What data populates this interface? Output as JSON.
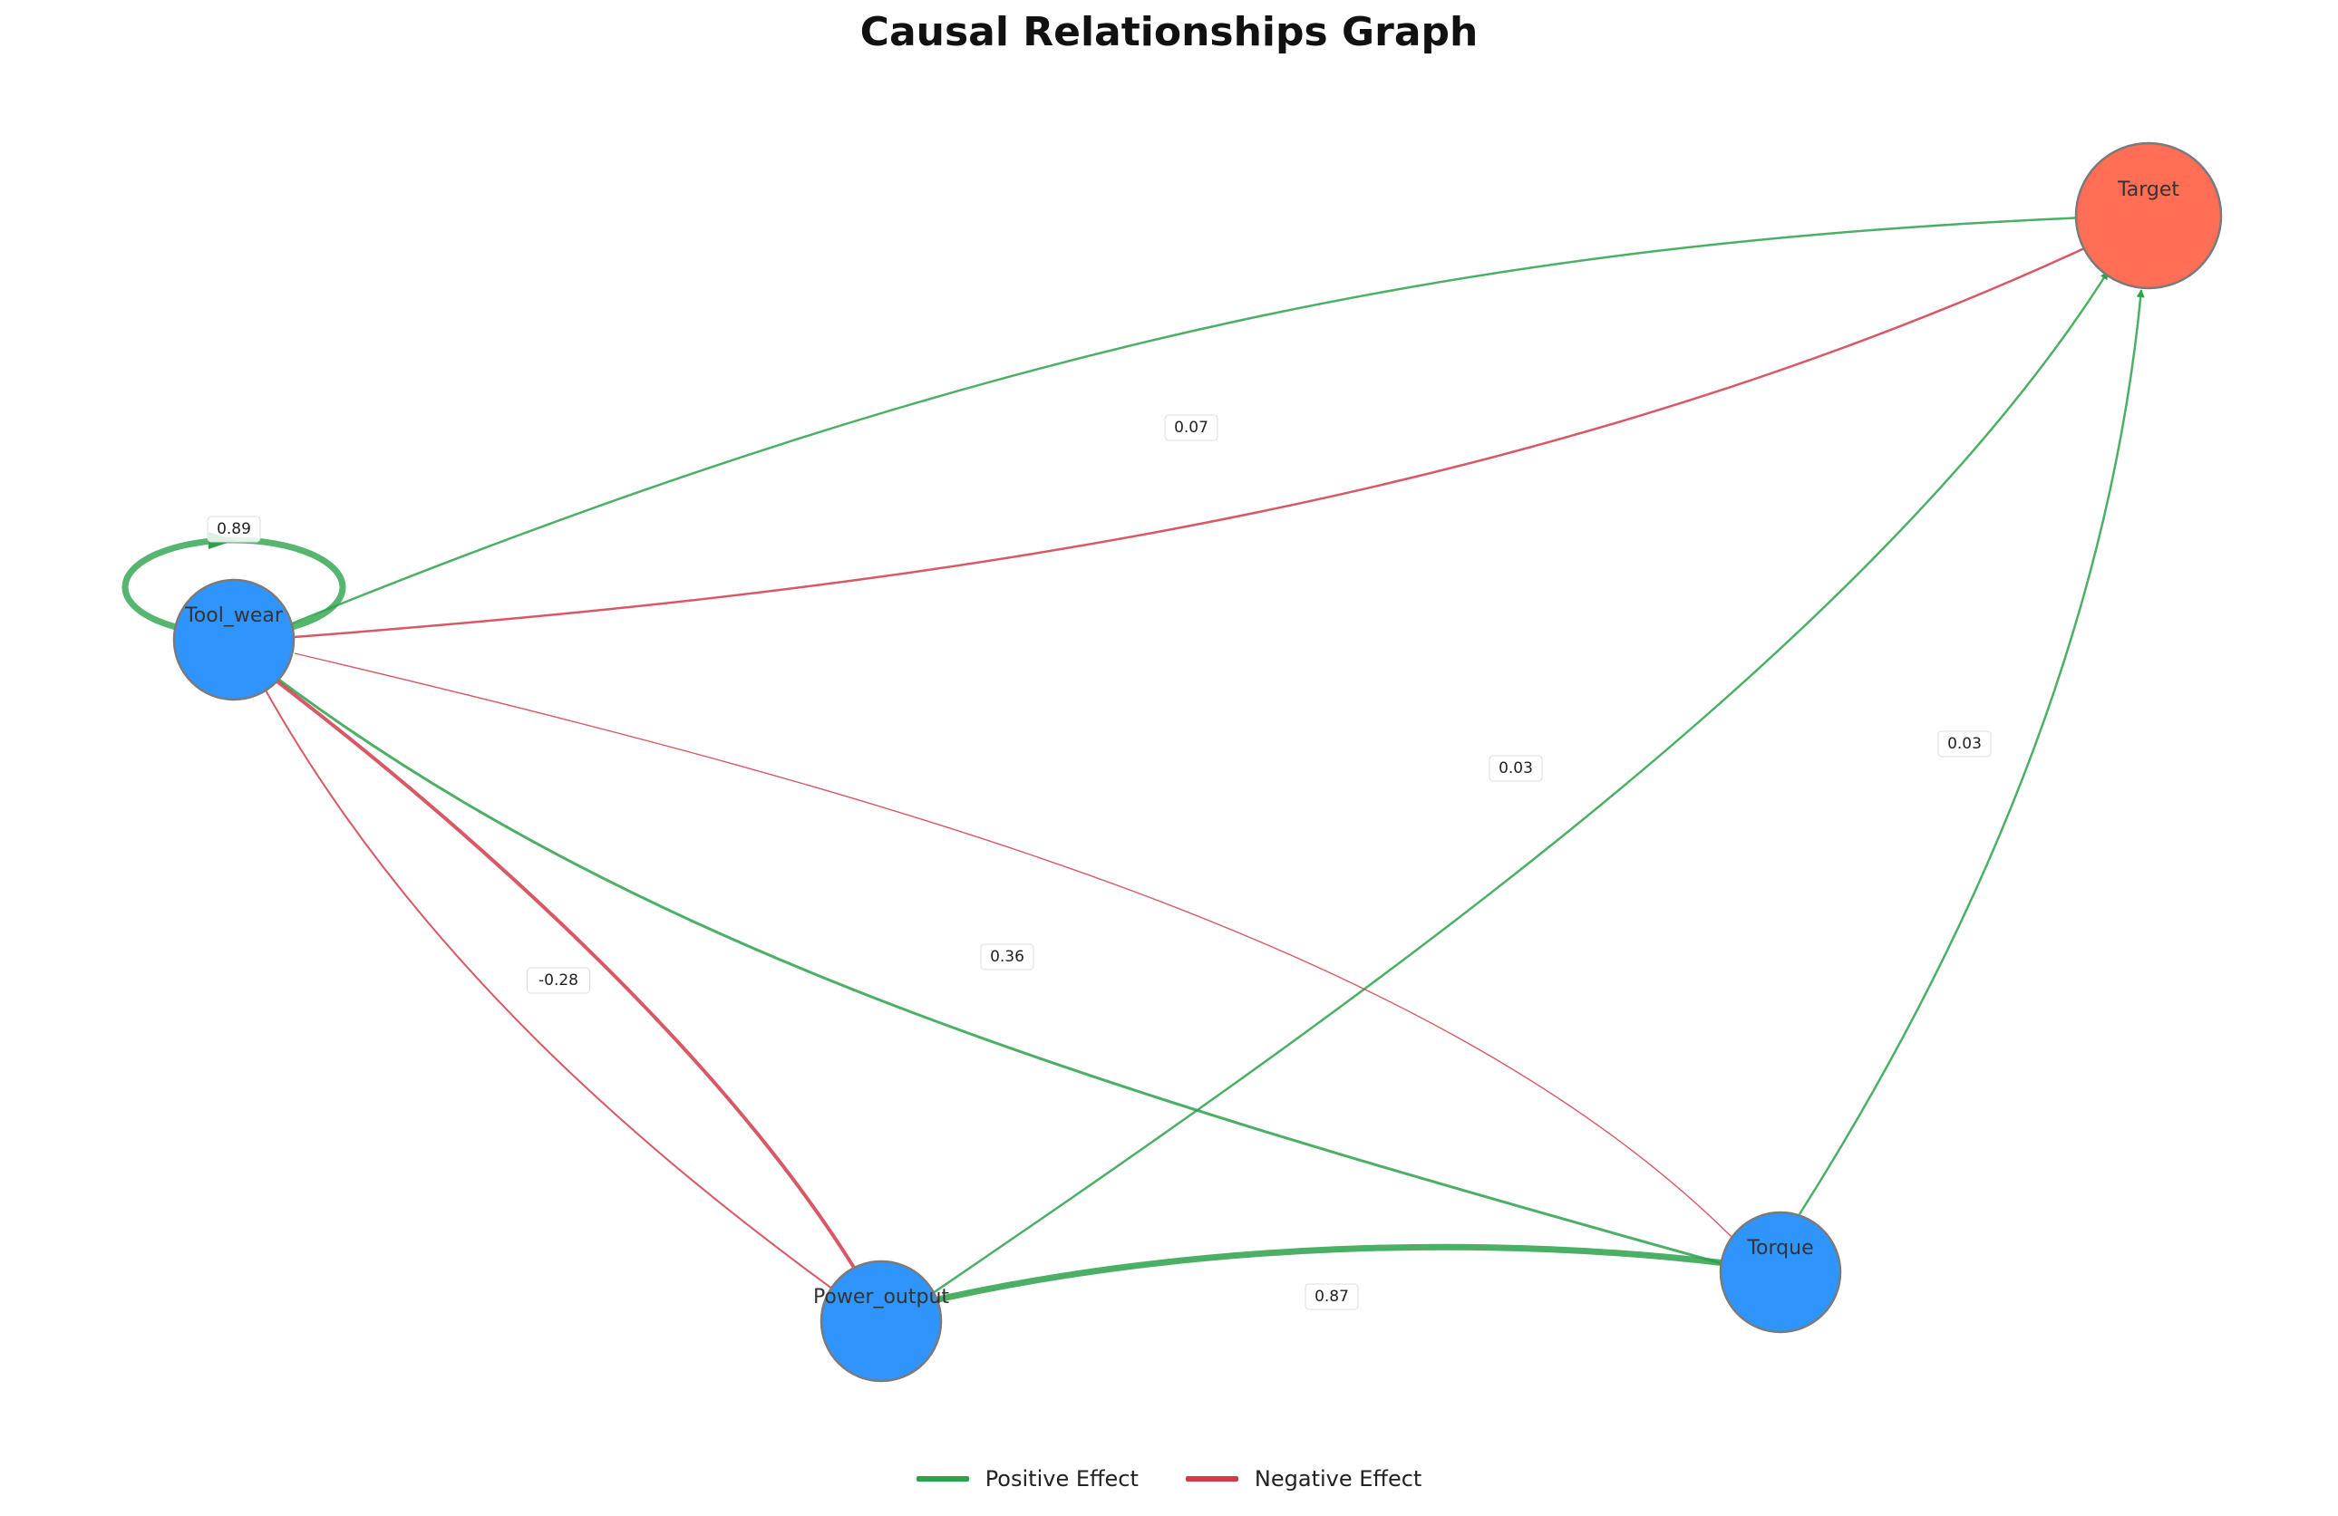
{
  "title": "Causal Relationships Graph",
  "colors": {
    "positive": "#2ca24a",
    "negative": "#d13b4a",
    "feature_node": "#2f95fd",
    "target_node": "#ff6e55"
  },
  "nodes": [
    {
      "id": "tool_wear",
      "label": "Tool_wear",
      "kind": "feature"
    },
    {
      "id": "power_output",
      "label": "Power_output",
      "kind": "feature"
    },
    {
      "id": "torque",
      "label": "Torque",
      "kind": "feature"
    },
    {
      "id": "target",
      "label": "Target",
      "kind": "target"
    }
  ],
  "edges": [
    {
      "id": "tw-target",
      "source": "tool_wear",
      "target": "target",
      "sign": "positive",
      "weight": 0.07,
      "label": "0.07"
    },
    {
      "id": "target-tw",
      "source": "target",
      "target": "tool_wear",
      "sign": "negative",
      "weight": 0.07
    },
    {
      "id": "tw-self",
      "source": "tool_wear",
      "target": "tool_wear",
      "sign": "positive",
      "weight": 0.89,
      "label": "0.89"
    },
    {
      "id": "po-target",
      "source": "power_output",
      "target": "target",
      "sign": "positive",
      "weight": 0.03,
      "label": "0.03"
    },
    {
      "id": "torque-target",
      "source": "torque",
      "target": "target",
      "sign": "positive",
      "weight": 0.03,
      "label": "0.03"
    },
    {
      "id": "po-torque",
      "source": "power_output",
      "target": "torque",
      "sign": "positive",
      "weight": 0.87,
      "label": "0.87"
    },
    {
      "id": "torque-tw",
      "source": "torque",
      "target": "tool_wear",
      "sign": "positive",
      "weight": 0.36,
      "label": "0.36"
    },
    {
      "id": "tw-torque",
      "source": "tool_wear",
      "target": "torque",
      "sign": "negative",
      "weight": 0.36
    },
    {
      "id": "po-tw",
      "source": "power_output",
      "target": "tool_wear",
      "sign": "negative",
      "weight": 0.28,
      "label": "-0.28"
    },
    {
      "id": "tw-po",
      "source": "tool_wear",
      "target": "power_output",
      "sign": "negative",
      "weight": 0.28
    }
  ],
  "legend": [
    {
      "label": "Positive Effect",
      "sign": "positive"
    },
    {
      "label": "Negative Effect",
      "sign": "negative"
    }
  ]
}
